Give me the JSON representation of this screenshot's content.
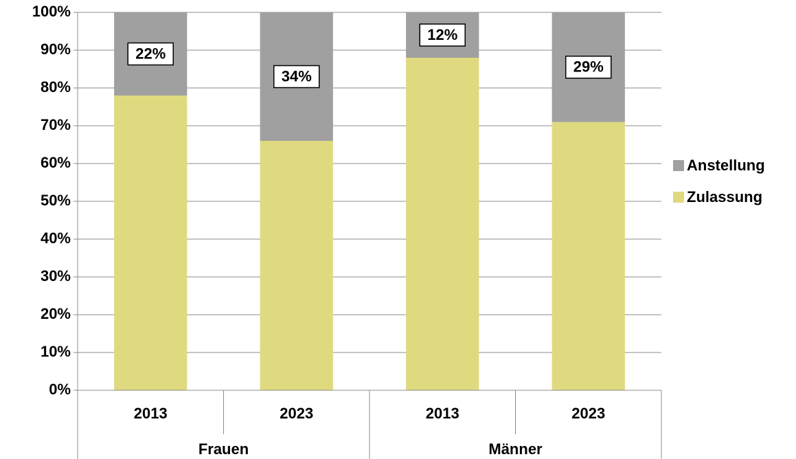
{
  "chart_data": {
    "type": "stacked_bar",
    "categories": [
      "2013",
      "2023",
      "2013",
      "2023"
    ],
    "groups": [
      "Frauen",
      "Männer"
    ],
    "series": [
      {
        "name": "Zulassung",
        "color": "#dfda80",
        "values": [
          78,
          66,
          88,
          71
        ]
      },
      {
        "name": "Anstellung",
        "color": "#a0a0a0",
        "values": [
          22,
          34,
          12,
          29
        ],
        "value_labels": [
          "22%",
          "34%",
          "12%",
          "29%"
        ]
      }
    ],
    "ylim": [
      0,
      100
    ],
    "yticks": [
      {
        "value": 0,
        "label": "0%"
      },
      {
        "value": 10,
        "label": "10%"
      },
      {
        "value": 20,
        "label": "20%"
      },
      {
        "value": 30,
        "label": "30%"
      },
      {
        "value": 40,
        "label": "40%"
      },
      {
        "value": 50,
        "label": "50%"
      },
      {
        "value": 60,
        "label": "60%"
      },
      {
        "value": 70,
        "label": "70%"
      },
      {
        "value": 80,
        "label": "80%"
      },
      {
        "value": 90,
        "label": "90%"
      },
      {
        "value": 100,
        "label": "100%"
      }
    ],
    "grid": true,
    "legend": "right"
  }
}
